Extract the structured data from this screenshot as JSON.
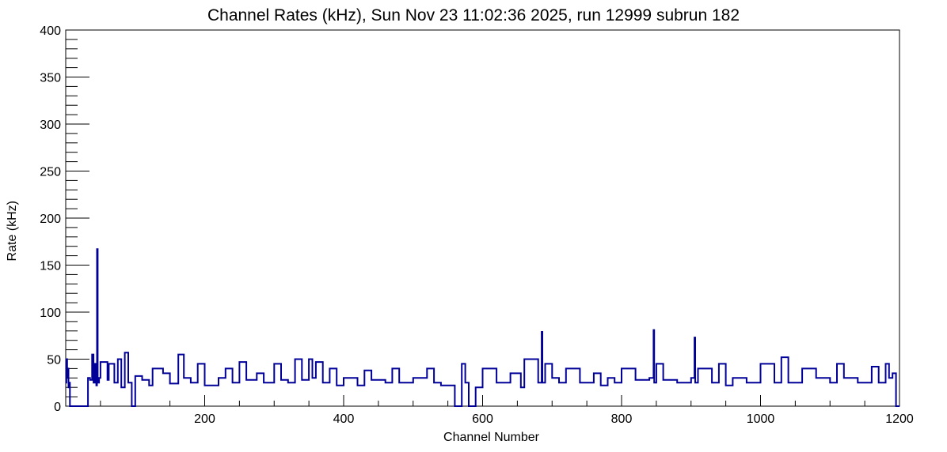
{
  "chart_data": {
    "type": "line",
    "title": "Channel Rates (kHz), Sun Nov 23 11:02:36 2025, run 12999 subrun 182",
    "xlabel": "Channel Number",
    "ylabel": "Rate (kHz)",
    "xlim": [
      0,
      1200
    ],
    "ylim": [
      0,
      400
    ],
    "x_ticks": [
      200,
      400,
      600,
      800,
      1000,
      1200
    ],
    "y_ticks": [
      0,
      50,
      100,
      150,
      200,
      250,
      300,
      350,
      400
    ],
    "grid": false,
    "legend": "none",
    "series": [
      {
        "color": "#000099",
        "x": [
          0,
          1,
          2,
          3,
          4,
          5,
          6,
          7,
          8,
          9,
          10,
          32,
          35,
          38,
          40,
          42,
          44,
          45,
          46,
          48,
          50,
          60,
          62,
          70,
          75,
          80,
          85,
          90,
          95,
          100,
          110,
          120,
          125,
          140,
          150,
          162,
          170,
          180,
          190,
          200,
          220,
          230,
          240,
          250,
          260,
          275,
          285,
          300,
          310,
          320,
          330,
          340,
          350,
          355,
          360,
          370,
          380,
          390,
          400,
          420,
          430,
          440,
          460,
          470,
          480,
          500,
          520,
          530,
          540,
          560,
          570,
          575,
          580,
          590,
          600,
          620,
          640,
          655,
          660,
          680,
          685,
          686,
          690,
          700,
          710,
          720,
          740,
          760,
          770,
          780,
          790,
          800,
          820,
          840,
          846,
          847,
          850,
          860,
          880,
          900,
          905,
          906,
          910,
          930,
          940,
          950,
          960,
          980,
          1000,
          1020,
          1030,
          1040,
          1060,
          1080,
          1100,
          1110,
          1120,
          1140,
          1160,
          1170,
          1180,
          1185,
          1190,
          1195
        ],
        "y": [
          25,
          50,
          30,
          40,
          20,
          25,
          0,
          0,
          0,
          0,
          0,
          30,
          28,
          55,
          25,
          45,
          22,
          167,
          25,
          30,
          47,
          28,
          45,
          25,
          50,
          20,
          57,
          25,
          0,
          32,
          28,
          22,
          40,
          35,
          24,
          55,
          30,
          25,
          45,
          22,
          30,
          40,
          25,
          47,
          28,
          35,
          25,
          45,
          28,
          25,
          50,
          28,
          50,
          30,
          47,
          25,
          40,
          22,
          30,
          22,
          38,
          28,
          25,
          40,
          25,
          30,
          40,
          25,
          22,
          0,
          45,
          25,
          0,
          20,
          40,
          25,
          35,
          20,
          50,
          25,
          79,
          25,
          45,
          30,
          25,
          40,
          25,
          35,
          22,
          30,
          25,
          40,
          28,
          30,
          81,
          25,
          45,
          28,
          25,
          30,
          73,
          25,
          40,
          25,
          45,
          22,
          30,
          25,
          45,
          25,
          52,
          25,
          40,
          30,
          25,
          45,
          30,
          25,
          42,
          25,
          45,
          30,
          35,
          0
        ]
      }
    ]
  }
}
